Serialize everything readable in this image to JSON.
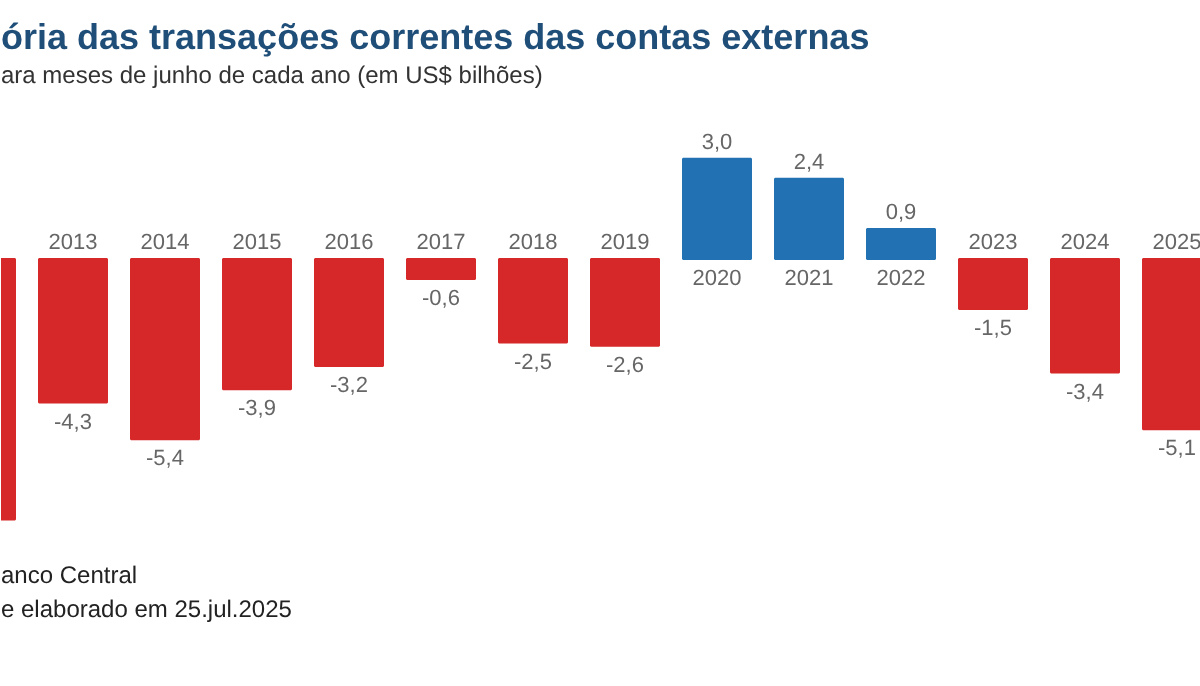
{
  "chart_data": {
    "type": "bar",
    "title": "ória das transações correntes das contas externas",
    "subtitle": "ara meses de junho de cada ano (em US$ bilhões)",
    "categories": [
      null,
      "2013",
      "2014",
      "2015",
      "2016",
      "2017",
      "2018",
      "2019",
      "2020",
      "2021",
      "2022",
      "2023",
      "2024",
      "2025"
    ],
    "values": [
      -7.8,
      -4.3,
      -5.4,
      -3.9,
      -3.2,
      -0.6,
      -2.5,
      -2.6,
      3.0,
      2.4,
      0.9,
      -1.5,
      -3.4,
      -5.1
    ],
    "value_labels": [
      null,
      "-4,3",
      "-5,4",
      "-3,9",
      "-3,2",
      "-0,6",
      "-2,5",
      "-2,6",
      "3,0",
      "2,4",
      "0,9",
      "-1,5",
      "-3,4",
      "-5,1"
    ],
    "colors": [
      "#d62828",
      "#d62828",
      "#d62828",
      "#d62828",
      "#d62828",
      "#d62828",
      "#d62828",
      "#d62828",
      "#2271b3",
      "#2271b3",
      "#2271b3",
      "#d62828",
      "#d62828",
      "#d62828"
    ],
    "relative": false,
    "annotations": [
      "anco Central",
      "e elaborado em 25.jul.2025"
    ]
  }
}
